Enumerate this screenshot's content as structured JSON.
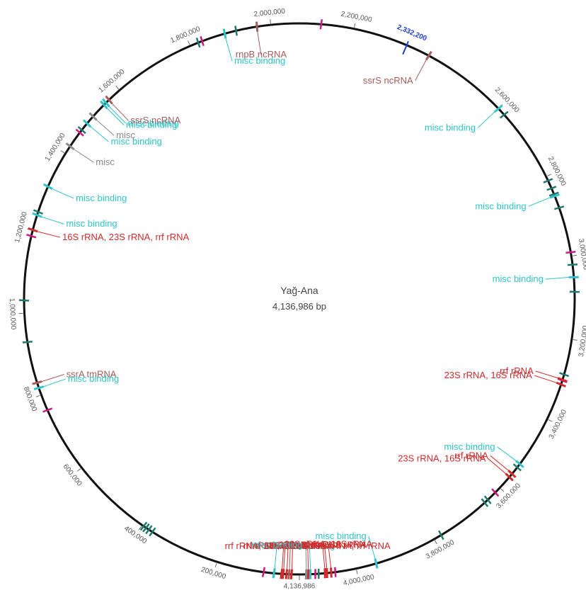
{
  "plasmid": {
    "name": "Yağ-Ana",
    "length_label": "4,136,986 bp",
    "length": 4136986
  },
  "colors": {
    "backbone": "#111111",
    "misc_binding": "#2ec4c9",
    "rRNA": "#d22a2a",
    "ncRNA": "#a55c5c",
    "misc": "#8a8a8a",
    "tmRNA": "#a55c5c",
    "gene_dark": "#1d7a6a",
    "gene_magenta": "#cc1a80",
    "cursor": "#1f3fd6"
  },
  "tick_labels": [
    {
      "pos": 200000,
      "text": "200,000"
    },
    {
      "pos": 400000,
      "text": "400,000"
    },
    {
      "pos": 600000,
      "text": "600,000"
    },
    {
      "pos": 800000,
      "text": "800,000"
    },
    {
      "pos": 1000000,
      "text": "1,000,000"
    },
    {
      "pos": 1200000,
      "text": "1,200,000"
    },
    {
      "pos": 1400000,
      "text": "1,400,000"
    },
    {
      "pos": 1600000,
      "text": "1,600,000"
    },
    {
      "pos": 1800000,
      "text": "1,800,000"
    },
    {
      "pos": 2000000,
      "text": "2,000,000"
    },
    {
      "pos": 2200000,
      "text": "2,200,000"
    },
    {
      "pos": 2600000,
      "text": "2,600,000"
    },
    {
      "pos": 2800000,
      "text": "2,800,000"
    },
    {
      "pos": 3000000,
      "text": "3,000,000"
    },
    {
      "pos": 3200000,
      "text": "3,200,000"
    },
    {
      "pos": 3400000,
      "text": "3,400,000"
    },
    {
      "pos": 3600000,
      "text": "3,600,000"
    },
    {
      "pos": 3800000,
      "text": "3,800,000"
    },
    {
      "pos": 4000000,
      "text": "4,000,000"
    },
    {
      "pos": 4136986,
      "text": "4,136,986"
    }
  ],
  "cursor": {
    "pos": 2332200,
    "text": "2,332,200"
  },
  "features": [
    {
      "pos": 1966000,
      "type": "ncRNA",
      "label": "rnpB ncRNA"
    },
    {
      "pos": 1887000,
      "type": "misc_binding",
      "label": "misc binding"
    },
    {
      "pos": 2390000,
      "type": "ncRNA",
      "label": "ssrS ncRNA"
    },
    {
      "pos": 2600000,
      "type": "misc_binding",
      "label": "misc binding"
    },
    {
      "pos": 2850000,
      "type": "misc_binding",
      "label": "misc binding"
    },
    {
      "pos": 3050000,
      "type": "misc_binding",
      "label": "misc binding"
    },
    {
      "pos": 3298000,
      "type": "rRNA",
      "label": "rrf rRNA"
    },
    {
      "pos": 3310000,
      "type": "rRNA",
      "label": "23S rRNA, 16S rRNA"
    },
    {
      "pos": 3525000,
      "type": "misc_binding",
      "label": "misc binding"
    },
    {
      "pos": 3555000,
      "type": "rRNA",
      "label": "rrf rRNA"
    },
    {
      "pos": 3565000,
      "type": "rRNA",
      "label": "23S rRNA, 16S rRNA"
    },
    {
      "pos": 3950000,
      "type": "misc_binding",
      "label": "misc binding"
    },
    {
      "pos": 4110000,
      "type": "misc_binding",
      "label": "misc binding"
    },
    {
      "pos": 4060000,
      "type": "rRNA",
      "label": "23S rRNA, 16S rRNA"
    },
    {
      "pos": 4070000,
      "type": "rRNA",
      "label": "rrf rRNA"
    },
    {
      "pos": 4075000,
      "type": "rRNA",
      "label": "23S rRNA, 16S rRNA"
    },
    {
      "pos": 4115000,
      "type": "rRNA",
      "label": "rrf rRNA, 23S rRNA, 16S rRNA, rrf rRNA"
    },
    {
      "pos": 4120000,
      "type": "misc",
      "label": "misc"
    },
    {
      "pos": 18000,
      "type": "rRNA",
      "label": "rrf rRNA, 23S rRNA"
    },
    {
      "pos": 24000,
      "type": "ncRNA",
      "label": "ffs ncRNA"
    },
    {
      "pos": 30000,
      "type": "rRNA",
      "label": "16S rRNA"
    },
    {
      "pos": 38000,
      "type": "rRNA",
      "label": "16S rRNA"
    },
    {
      "pos": 42000,
      "type": "rRNA",
      "label": "rrf rRNA, 23S rRNA"
    },
    {
      "pos": 60000,
      "type": "misc_binding",
      "label": "misc binding"
    },
    {
      "pos": 830000,
      "type": "tmRNA",
      "label": "ssrA tmRNA"
    },
    {
      "pos": 817000,
      "type": "misc_binding",
      "label": "misc binding"
    },
    {
      "pos": 1200000,
      "type": "rRNA",
      "label": "16S rRNA, 23S rRNA, rrf rRNA"
    },
    {
      "pos": 1237000,
      "type": "misc_binding",
      "label": "misc binding"
    },
    {
      "pos": 1310000,
      "type": "misc_binding",
      "label": "misc binding"
    },
    {
      "pos": 1420000,
      "type": "misc",
      "label": "misc"
    },
    {
      "pos": 1488000,
      "type": "misc_binding",
      "label": "misc binding"
    },
    {
      "pos": 1510000,
      "type": "misc",
      "label": "misc"
    },
    {
      "pos": 1548000,
      "type": "misc_binding",
      "label": "misc binding"
    },
    {
      "pos": 1555000,
      "type": "misc_binding",
      "label": "misc binding"
    },
    {
      "pos": 1565000,
      "type": "ncRNA",
      "label": "ssrS ncRNA"
    }
  ],
  "gene_marks": [
    {
      "pos": 1820000,
      "color": "gene_dark"
    },
    {
      "pos": 1830000,
      "color": "gene_magenta"
    },
    {
      "pos": 1915000,
      "color": "gene_dark"
    },
    {
      "pos": 2120000,
      "color": "gene_magenta"
    },
    {
      "pos": 2620000,
      "color": "gene_dark"
    },
    {
      "pos": 2810000,
      "color": "gene_dark"
    },
    {
      "pos": 2830000,
      "color": "gene_dark"
    },
    {
      "pos": 2845000,
      "color": "gene_dark"
    },
    {
      "pos": 2880000,
      "color": "gene_dark"
    },
    {
      "pos": 2990000,
      "color": "gene_magenta"
    },
    {
      "pos": 3020000,
      "color": "gene_dark"
    },
    {
      "pos": 3085000,
      "color": "gene_dark"
    },
    {
      "pos": 3285000,
      "color": "gene_dark"
    },
    {
      "pos": 3300000,
      "color": "gene_magenta"
    },
    {
      "pos": 3535000,
      "color": "gene_dark"
    },
    {
      "pos": 3615000,
      "color": "gene_magenta"
    },
    {
      "pos": 3640000,
      "color": "gene_dark"
    },
    {
      "pos": 3650000,
      "color": "gene_dark"
    },
    {
      "pos": 3780000,
      "color": "gene_dark"
    },
    {
      "pos": 4050000,
      "color": "gene_magenta"
    },
    {
      "pos": 4090000,
      "color": "gene_dark"
    },
    {
      "pos": 4098000,
      "color": "gene_magenta"
    },
    {
      "pos": 85000,
      "color": "gene_magenta"
    },
    {
      "pos": 370000,
      "color": "gene_dark"
    },
    {
      "pos": 380000,
      "color": "gene_dark"
    },
    {
      "pos": 388000,
      "color": "gene_dark"
    },
    {
      "pos": 395000,
      "color": "gene_dark"
    },
    {
      "pos": 760000,
      "color": "gene_magenta"
    },
    {
      "pos": 930000,
      "color": "gene_dark"
    },
    {
      "pos": 1030000,
      "color": "gene_dark"
    },
    {
      "pos": 1185000,
      "color": "gene_magenta"
    },
    {
      "pos": 1245000,
      "color": "gene_dark"
    },
    {
      "pos": 1460000,
      "color": "gene_magenta"
    },
    {
      "pos": 1468000,
      "color": "gene_dark"
    }
  ]
}
